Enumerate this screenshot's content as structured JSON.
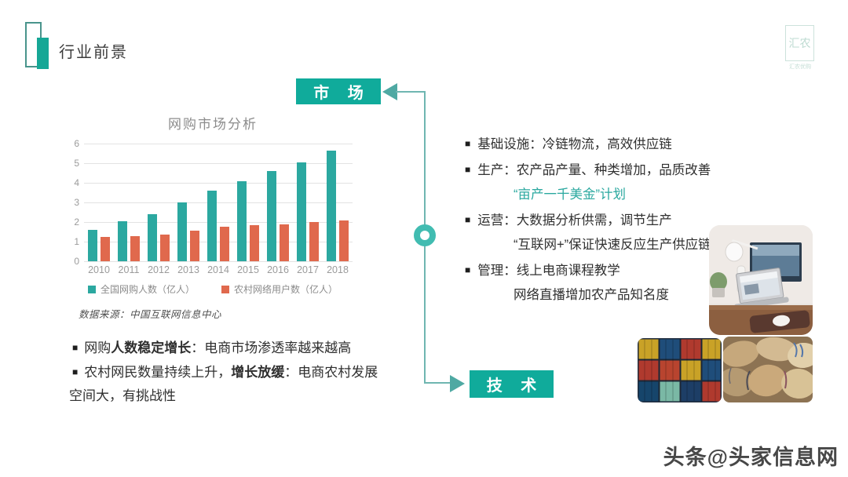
{
  "slide": {
    "title": "行业前景",
    "logo_main": "汇农",
    "logo_caption": "汇农优购",
    "watermark": "头条@头家信息网"
  },
  "flow": {
    "market_label": "市 场",
    "tech_label": "技 术"
  },
  "chart_data": {
    "type": "bar",
    "title": "网购市场分析",
    "categories": [
      "2010",
      "2011",
      "2012",
      "2013",
      "2014",
      "2015",
      "2016",
      "2017",
      "2018"
    ],
    "series": [
      {
        "name": "全国网购人数（亿人）",
        "color": "#2ba8a0",
        "values": [
          1.6,
          2.05,
          2.4,
          3.0,
          3.6,
          4.1,
          4.6,
          5.05,
          5.65
        ]
      },
      {
        "name": "农村网络用户数（亿人）",
        "color": "#e0694d",
        "values": [
          1.25,
          1.3,
          1.35,
          1.55,
          1.78,
          1.85,
          1.9,
          2.0,
          2.1
        ]
      }
    ],
    "ylim": [
      0,
      6
    ],
    "ytick_step": 1,
    "grid": true,
    "legend_position": "bottom",
    "source_note": "数据来源：中国互联网信息中心"
  },
  "market_notes": [
    {
      "segments": [
        {
          "text": "网购"
        },
        {
          "text": "人数稳定增长",
          "bold": true
        },
        {
          "text": "：电商市场渗透率越来越高"
        }
      ]
    },
    {
      "segments": [
        {
          "text": "农村网民数量持续上升，"
        },
        {
          "text": "增长放缓",
          "bold": true
        },
        {
          "text": "：电商农村发展空间大，有挑战性"
        }
      ]
    }
  ],
  "tech_points": [
    {
      "bullet": true,
      "text": "基础设施：冷链物流，高效供应链"
    },
    {
      "bullet": true,
      "text": "生产：农产品产量、种类增加，品质改善"
    },
    {
      "bullet": false,
      "text": "“亩产一千美金”计划",
      "highlight": true
    },
    {
      "bullet": true,
      "text": "运营：大数据分析供需，调节生产"
    },
    {
      "bullet": false,
      "text": "“互联网+”保证快速反应生产供应链"
    },
    {
      "bullet": true,
      "text": "管理：线上电商课程教学"
    },
    {
      "bullet": false,
      "text": "网络直播增加农产品知名度"
    }
  ],
  "photos": {
    "desk": "workspace-desk-photo",
    "containers": "shipping-containers-photo",
    "sacks": "grain-sacks-photo"
  },
  "colors": {
    "accent_teal": "#10ab9b",
    "bar_teal": "#2ba8a0",
    "bar_orange": "#e0694d",
    "connector": "#6fb6b1"
  }
}
